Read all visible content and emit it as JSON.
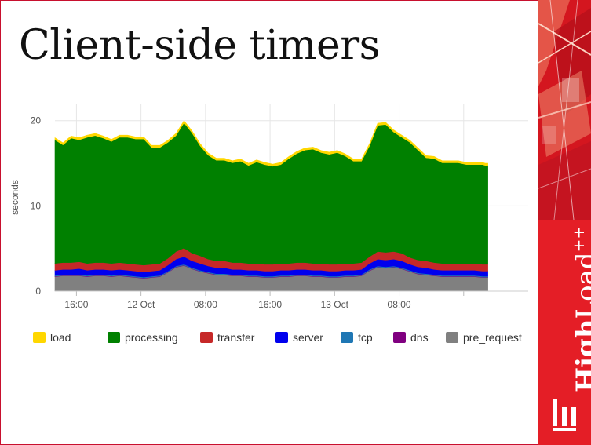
{
  "slide": {
    "title": "Client-side timers",
    "brand": {
      "word_bold": "High",
      "word_regular": "Load",
      "suffix": "++"
    }
  },
  "colors": {
    "load": "#ffd700",
    "processing": "#008000",
    "transfer": "#c62828",
    "server": "#0000ee",
    "tcp": "#1f77b4",
    "dns": "#800080",
    "pre_request": "#808080",
    "brand_red": "#e41e26"
  },
  "chart_data": {
    "type": "area",
    "stacked": true,
    "ylabel": "seconds",
    "ylim": [
      0,
      22
    ],
    "yticks": [
      0,
      10,
      20
    ],
    "xlim": [
      0,
      44
    ],
    "x_tick_positions": [
      2,
      8,
      14,
      20,
      26,
      32,
      38
    ],
    "x_tick_labels": [
      "16:00",
      "12 Oct",
      "08:00",
      "16:00",
      "13 Oct",
      "08:00",
      ""
    ],
    "grid": true,
    "legend_position": "bottom",
    "x": [
      0,
      0.75,
      1.5,
      2.25,
      3,
      3.75,
      4.5,
      5.25,
      6,
      6.75,
      7.5,
      8.25,
      9,
      9.75,
      10.5,
      11.25,
      12,
      12.75,
      13.5,
      14.25,
      15,
      15.75,
      16.5,
      17.25,
      18,
      18.75,
      19.5,
      20.25,
      21,
      21.75,
      22.5,
      23.25,
      24,
      24.75,
      25.5,
      26.25,
      27,
      27.75,
      28.5,
      29.25,
      30,
      30.75,
      31.5,
      32.25,
      33,
      33.75,
      34.5,
      35.25,
      36,
      36.75,
      37.5,
      38.25,
      39,
      39.75,
      40,
      40.25
    ],
    "series": [
      {
        "name": "pre_request",
        "values": [
          1.7,
          1.8,
          1.8,
          1.8,
          1.7,
          1.8,
          1.8,
          1.7,
          1.8,
          1.7,
          1.6,
          1.5,
          1.6,
          1.7,
          2.2,
          2.8,
          3.0,
          2.6,
          2.3,
          2.1,
          1.9,
          1.9,
          1.8,
          1.8,
          1.7,
          1.7,
          1.6,
          1.6,
          1.7,
          1.7,
          1.8,
          1.8,
          1.7,
          1.7,
          1.6,
          1.6,
          1.7,
          1.7,
          1.8,
          2.4,
          2.8,
          2.7,
          2.8,
          2.6,
          2.3,
          2.0,
          1.9,
          1.8,
          1.7,
          1.7,
          1.7,
          1.7,
          1.7,
          1.6,
          1.6,
          1.6
        ]
      },
      {
        "name": "dns",
        "values": [
          0.05,
          0.05,
          0.05,
          0.05,
          0.05,
          0.05,
          0.05,
          0.05,
          0.05,
          0.05,
          0.05,
          0.05,
          0.05,
          0.05,
          0.05,
          0.05,
          0.05,
          0.05,
          0.05,
          0.05,
          0.05,
          0.05,
          0.05,
          0.05,
          0.05,
          0.05,
          0.05,
          0.05,
          0.05,
          0.05,
          0.05,
          0.05,
          0.05,
          0.05,
          0.05,
          0.05,
          0.05,
          0.05,
          0.05,
          0.05,
          0.05,
          0.05,
          0.05,
          0.05,
          0.05,
          0.05,
          0.05,
          0.05,
          0.05,
          0.05,
          0.05,
          0.05,
          0.05,
          0.05,
          0.05,
          0.05
        ]
      },
      {
        "name": "tcp",
        "values": [
          0.1,
          0.1,
          0.1,
          0.1,
          0.1,
          0.1,
          0.1,
          0.1,
          0.1,
          0.1,
          0.1,
          0.1,
          0.1,
          0.1,
          0.1,
          0.1,
          0.1,
          0.1,
          0.1,
          0.1,
          0.1,
          0.1,
          0.1,
          0.1,
          0.1,
          0.1,
          0.1,
          0.1,
          0.1,
          0.1,
          0.1,
          0.1,
          0.1,
          0.1,
          0.1,
          0.1,
          0.1,
          0.1,
          0.1,
          0.1,
          0.1,
          0.1,
          0.1,
          0.1,
          0.1,
          0.1,
          0.1,
          0.1,
          0.1,
          0.1,
          0.1,
          0.1,
          0.1,
          0.1,
          0.1,
          0.1
        ]
      },
      {
        "name": "server",
        "values": [
          0.6,
          0.6,
          0.6,
          0.7,
          0.6,
          0.6,
          0.6,
          0.6,
          0.6,
          0.6,
          0.6,
          0.6,
          0.6,
          0.6,
          0.7,
          0.8,
          0.9,
          0.8,
          0.8,
          0.7,
          0.7,
          0.7,
          0.6,
          0.6,
          0.6,
          0.6,
          0.6,
          0.6,
          0.6,
          0.6,
          0.6,
          0.6,
          0.6,
          0.6,
          0.6,
          0.6,
          0.6,
          0.6,
          0.6,
          0.7,
          0.8,
          0.8,
          0.8,
          0.8,
          0.7,
          0.7,
          0.7,
          0.6,
          0.6,
          0.6,
          0.6,
          0.6,
          0.6,
          0.6,
          0.6,
          0.6
        ]
      },
      {
        "name": "transfer",
        "values": [
          0.8,
          0.8,
          0.8,
          0.8,
          0.8,
          0.8,
          0.8,
          0.8,
          0.8,
          0.8,
          0.8,
          0.8,
          0.8,
          0.8,
          0.8,
          0.9,
          1.0,
          0.9,
          0.9,
          0.8,
          0.8,
          0.8,
          0.8,
          0.8,
          0.8,
          0.8,
          0.8,
          0.8,
          0.8,
          0.8,
          0.8,
          0.8,
          0.8,
          0.8,
          0.8,
          0.8,
          0.8,
          0.8,
          0.8,
          0.8,
          0.9,
          0.9,
          0.9,
          0.9,
          0.8,
          0.8,
          0.8,
          0.8,
          0.8,
          0.8,
          0.8,
          0.8,
          0.8,
          0.8,
          0.8,
          0.8
        ]
      },
      {
        "name": "processing",
        "values": [
          14.5,
          13.8,
          14.6,
          14.3,
          14.8,
          14.9,
          14.6,
          14.3,
          14.7,
          14.8,
          14.7,
          14.8,
          13.7,
          13.6,
          13.6,
          13.6,
          14.7,
          14.1,
          12.9,
          12.2,
          11.8,
          11.8,
          11.7,
          11.9,
          11.5,
          11.9,
          11.7,
          11.5,
          11.6,
          12.3,
          12.8,
          13.2,
          13.4,
          13.0,
          12.9,
          13.1,
          12.6,
          12.0,
          11.9,
          13.0,
          14.8,
          15.0,
          14.0,
          13.6,
          13.5,
          12.9,
          12.1,
          12.2,
          11.8,
          11.8,
          11.8,
          11.6,
          11.6,
          11.7,
          11.6,
          11.6
        ]
      },
      {
        "name": "load",
        "values": [
          0.25,
          0.25,
          0.25,
          0.25,
          0.25,
          0.25,
          0.25,
          0.25,
          0.25,
          0.25,
          0.25,
          0.25,
          0.25,
          0.25,
          0.25,
          0.25,
          0.25,
          0.25,
          0.25,
          0.25,
          0.25,
          0.25,
          0.25,
          0.25,
          0.25,
          0.25,
          0.25,
          0.25,
          0.25,
          0.25,
          0.25,
          0.25,
          0.25,
          0.25,
          0.25,
          0.25,
          0.25,
          0.25,
          0.25,
          0.25,
          0.25,
          0.25,
          0.25,
          0.25,
          0.25,
          0.25,
          0.25,
          0.25,
          0.25,
          0.25,
          0.25,
          0.25,
          0.25,
          0.25,
          0.25,
          0.25
        ]
      }
    ],
    "legend": [
      "load",
      "processing",
      "transfer",
      "server",
      "tcp",
      "dns",
      "pre_request"
    ]
  }
}
